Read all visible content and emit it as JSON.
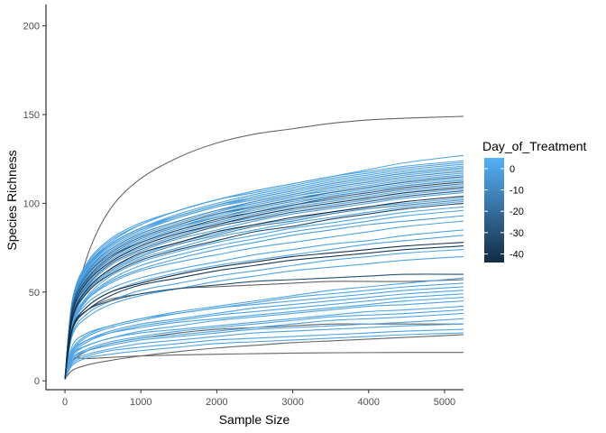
{
  "chart_data": {
    "type": "line",
    "title": "",
    "xlabel": "Sample Size",
    "ylabel": "Species Richness",
    "xlim": [
      -250,
      5250
    ],
    "ylim": [
      -5,
      212
    ],
    "xticks": [
      0,
      1000,
      2000,
      3000,
      4000,
      5000
    ],
    "yticks": [
      0,
      50,
      100,
      150,
      200
    ],
    "grid": false,
    "legend": {
      "title": "Day_of_Treatment",
      "placement": "right",
      "type": "colorbar",
      "range": [
        -44,
        5
      ],
      "ticks": [
        0,
        -10,
        -20,
        -30,
        -40
      ],
      "low_color": "#132B43",
      "high_color": "#56B1F7"
    },
    "na_color": "#666666",
    "curve_x": [
      0,
      100,
      300,
      600,
      1000,
      1500,
      2000,
      2500,
      3000,
      3500,
      4000,
      4500,
      5250
    ],
    "series": [
      {
        "day": null,
        "values": [
          1,
          36,
          71,
          97,
          114,
          126,
          134,
          139,
          142,
          145,
          147,
          148,
          149
        ]
      },
      {
        "day": null,
        "values": [
          1,
          29,
          40,
          46,
          49,
          52,
          53,
          54,
          55,
          56,
          56,
          56,
          57
        ]
      },
      {
        "day": null,
        "values": [
          1,
          12,
          12.5,
          13.2,
          14,
          14.6,
          15,
          15.3,
          15.6,
          15.8,
          15.9,
          16,
          16
        ]
      },
      {
        "day": null,
        "values": [
          1,
          6,
          9,
          11.5,
          14,
          16.5,
          18.5,
          20,
          21.5,
          22.5,
          23.5,
          24.5,
          26
        ]
      },
      {
        "day": null,
        "values": [
          1,
          11,
          17,
          21,
          24,
          27,
          29,
          30,
          31,
          32,
          32,
          32,
          32
        ]
      },
      {
        "day": 0,
        "values": [
          1,
          44,
          65,
          78,
          88,
          96,
          102,
          107,
          111,
          115,
          119,
          123,
          127
        ]
      },
      {
        "day": 0,
        "values": [
          1,
          45,
          66,
          79,
          88,
          96,
          102,
          107,
          111,
          115,
          118,
          121,
          124
        ]
      },
      {
        "day": 0,
        "values": [
          1,
          46,
          67,
          80,
          89,
          96,
          102,
          106,
          110,
          114,
          117,
          120,
          123
        ]
      },
      {
        "day": 0,
        "values": [
          1,
          44,
          64,
          77,
          86,
          94,
          100,
          105,
          109,
          113,
          116,
          119,
          122
        ]
      },
      {
        "day": 0,
        "values": [
          1,
          43,
          63,
          76,
          85,
          93,
          99,
          104,
          108,
          112,
          115,
          118,
          121
        ]
      },
      {
        "day": -5,
        "values": [
          1,
          46,
          65,
          77,
          86,
          93,
          99,
          103,
          107,
          111,
          114,
          117,
          120
        ]
      },
      {
        "day": 3,
        "values": [
          1,
          42,
          62,
          75,
          84,
          92,
          98,
          103,
          107,
          111,
          114,
          117,
          120
        ]
      },
      {
        "day": 0,
        "values": [
          1,
          45,
          64,
          76,
          85,
          92,
          98,
          102,
          106,
          110,
          113,
          116,
          119
        ]
      },
      {
        "day": -10,
        "values": [
          1,
          43,
          62,
          74,
          83,
          90,
          96,
          101,
          105,
          109,
          112,
          115,
          118
        ]
      },
      {
        "day": 0,
        "values": [
          1,
          44,
          62,
          74,
          83,
          90,
          96,
          100,
          104,
          108,
          111,
          114,
          117
        ]
      },
      {
        "day": -3,
        "values": [
          1,
          42,
          61,
          73,
          82,
          89,
          95,
          100,
          104,
          107,
          110,
          113,
          116
        ]
      },
      {
        "day": 0,
        "values": [
          1,
          41,
          60,
          72,
          81,
          88,
          94,
          99,
          103,
          106,
          109,
          112,
          115
        ]
      },
      {
        "day": -20,
        "values": [
          1,
          42,
          60,
          72,
          81,
          88,
          94,
          98,
          102,
          106,
          109,
          112,
          115
        ]
      },
      {
        "day": 2,
        "values": [
          1,
          40,
          59,
          71,
          80,
          87,
          93,
          98,
          102,
          105,
          108,
          111,
          114
        ]
      },
      {
        "day": -7,
        "values": [
          1,
          43,
          60,
          71,
          80,
          87,
          92,
          97,
          101,
          104,
          107,
          110,
          113
        ]
      },
      {
        "day": 0,
        "values": [
          1,
          40,
          58,
          70,
          79,
          86,
          92,
          96,
          100,
          104,
          107,
          110,
          113
        ]
      },
      {
        "day": -30,
        "values": [
          1,
          41,
          58,
          70,
          78,
          85,
          91,
          95,
          99,
          103,
          106,
          109,
          112
        ]
      },
      {
        "day": -15,
        "values": [
          1,
          39,
          57,
          69,
          78,
          85,
          90,
          95,
          99,
          102,
          105,
          108,
          111
        ]
      },
      {
        "day": 0,
        "values": [
          1,
          40,
          57,
          68,
          77,
          84,
          89,
          94,
          98,
          101,
          104,
          107,
          110
        ]
      },
      {
        "day": -40,
        "values": [
          1,
          39,
          56,
          67,
          76,
          83,
          88,
          93,
          97,
          100,
          103,
          106,
          109
        ]
      },
      {
        "day": 0,
        "values": [
          1,
          38,
          55,
          67,
          75,
          82,
          88,
          92,
          96,
          99,
          102,
          105,
          108
        ]
      },
      {
        "day": -25,
        "values": [
          1,
          38,
          54,
          66,
          74,
          81,
          87,
          91,
          95,
          98,
          101,
          104,
          107
        ]
      },
      {
        "day": 0,
        "values": [
          1,
          37,
          53,
          65,
          73,
          80,
          85,
          90,
          94,
          97,
          100,
          103,
          106
        ]
      },
      {
        "day": -44,
        "values": [
          1,
          36,
          52,
          63,
          72,
          78,
          84,
          88,
          92,
          95,
          98,
          101,
          104
        ]
      },
      {
        "day": 0,
        "values": [
          1,
          36,
          52,
          63,
          71,
          78,
          83,
          88,
          91,
          95,
          98,
          100,
          103
        ]
      },
      {
        "day": -12,
        "values": [
          1,
          35,
          51,
          62,
          70,
          77,
          82,
          87,
          90,
          94,
          97,
          99,
          102
        ]
      },
      {
        "day": 0,
        "values": [
          1,
          34,
          50,
          61,
          69,
          75,
          81,
          85,
          89,
          92,
          95,
          98,
          101
        ]
      },
      {
        "day": -35,
        "values": [
          1,
          35,
          50,
          60,
          68,
          74,
          79,
          84,
          87,
          91,
          94,
          97,
          100
        ]
      },
      {
        "day": 0,
        "values": [
          1,
          33,
          48,
          59,
          67,
          73,
          78,
          82,
          86,
          89,
          92,
          95,
          98
        ]
      },
      {
        "day": 0,
        "values": [
          1,
          32,
          47,
          57,
          65,
          71,
          76,
          80,
          84,
          87,
          90,
          93,
          96
        ]
      },
      {
        "day": -2,
        "values": [
          1,
          31,
          46,
          56,
          63,
          69,
          74,
          78,
          82,
          85,
          88,
          90,
          93
        ]
      },
      {
        "day": 0,
        "values": [
          1,
          33,
          46,
          55,
          62,
          67,
          71,
          75,
          78,
          81,
          84,
          87,
          90
        ]
      },
      {
        "day": 0,
        "values": [
          1,
          31,
          44,
          52,
          58,
          63,
          67,
          71,
          74,
          77,
          79,
          82,
          85
        ]
      },
      {
        "day": 0,
        "values": [
          1,
          30,
          42,
          50,
          56,
          61,
          65,
          68,
          71,
          74,
          77,
          79,
          82
        ]
      },
      {
        "day": -42,
        "values": [
          1,
          30,
          42,
          50,
          55,
          60,
          64,
          67,
          70,
          72,
          74,
          76,
          78
        ]
      },
      {
        "day": -38,
        "values": [
          1,
          29,
          40,
          48,
          54,
          58,
          62,
          65,
          68,
          70,
          72,
          74,
          76
        ]
      },
      {
        "day": 0,
        "values": [
          1,
          27,
          38,
          45,
          51,
          55,
          59,
          62,
          65,
          68,
          70,
          72,
          74
        ]
      },
      {
        "day": 0,
        "values": [
          1,
          26,
          36,
          43,
          48,
          52,
          56,
          59,
          62,
          64,
          66,
          68,
          70
        ]
      },
      {
        "day": -30,
        "values": [
          1,
          30,
          40,
          45,
          49,
          52,
          54,
          56,
          57,
          58,
          59,
          60,
          60
        ]
      },
      {
        "day": 0,
        "values": [
          1,
          18,
          26,
          31,
          35,
          39,
          42,
          45,
          48,
          51,
          53,
          55,
          58
        ]
      },
      {
        "day": 0,
        "values": [
          1,
          17,
          25,
          30,
          34,
          38,
          41,
          44,
          47,
          49,
          51,
          53,
          55
        ]
      },
      {
        "day": 0,
        "values": [
          1,
          20,
          27,
          31,
          35,
          38,
          41,
          43,
          45,
          47,
          49,
          51,
          53
        ]
      },
      {
        "day": 0,
        "values": [
          1,
          16,
          23,
          28,
          32,
          35,
          38,
          41,
          43,
          45,
          47,
          49,
          51
        ]
      },
      {
        "day": 0,
        "values": [
          1,
          15,
          22,
          27,
          31,
          34,
          37,
          39,
          41,
          43,
          45,
          47,
          49
        ]
      },
      {
        "day": 0,
        "values": [
          1,
          17,
          23,
          27,
          30,
          33,
          35,
          37,
          39,
          41,
          43,
          45,
          47
        ]
      },
      {
        "day": 0,
        "values": [
          1,
          14,
          20,
          24,
          28,
          31,
          34,
          36,
          38,
          40,
          42,
          43,
          45
        ]
      },
      {
        "day": 0,
        "values": [
          1,
          15,
          20,
          24,
          27,
          29,
          31,
          33,
          35,
          37,
          39,
          40,
          42
        ]
      },
      {
        "day": 0,
        "values": [
          1,
          13,
          18,
          22,
          25,
          28,
          30,
          32,
          34,
          36,
          37,
          38,
          40
        ]
      },
      {
        "day": 0,
        "values": [
          1,
          12,
          17,
          21,
          24,
          26,
          28,
          30,
          32,
          34,
          35,
          36,
          38
        ]
      },
      {
        "day": 0,
        "values": [
          1,
          13,
          17,
          20,
          23,
          25,
          27,
          29,
          30,
          31,
          32,
          33,
          35
        ]
      },
      {
        "day": 0,
        "values": [
          1,
          11,
          15,
          18,
          21,
          23,
          25,
          27,
          28,
          29,
          30,
          31,
          32
        ]
      },
      {
        "day": 0,
        "values": [
          1,
          10,
          14,
          17,
          19,
          21,
          23,
          24,
          25,
          26,
          27,
          28,
          29
        ]
      },
      {
        "day": 0,
        "values": [
          1,
          9,
          13,
          15,
          17,
          19,
          21,
          22,
          23,
          24,
          25,
          26,
          27
        ]
      }
    ]
  }
}
